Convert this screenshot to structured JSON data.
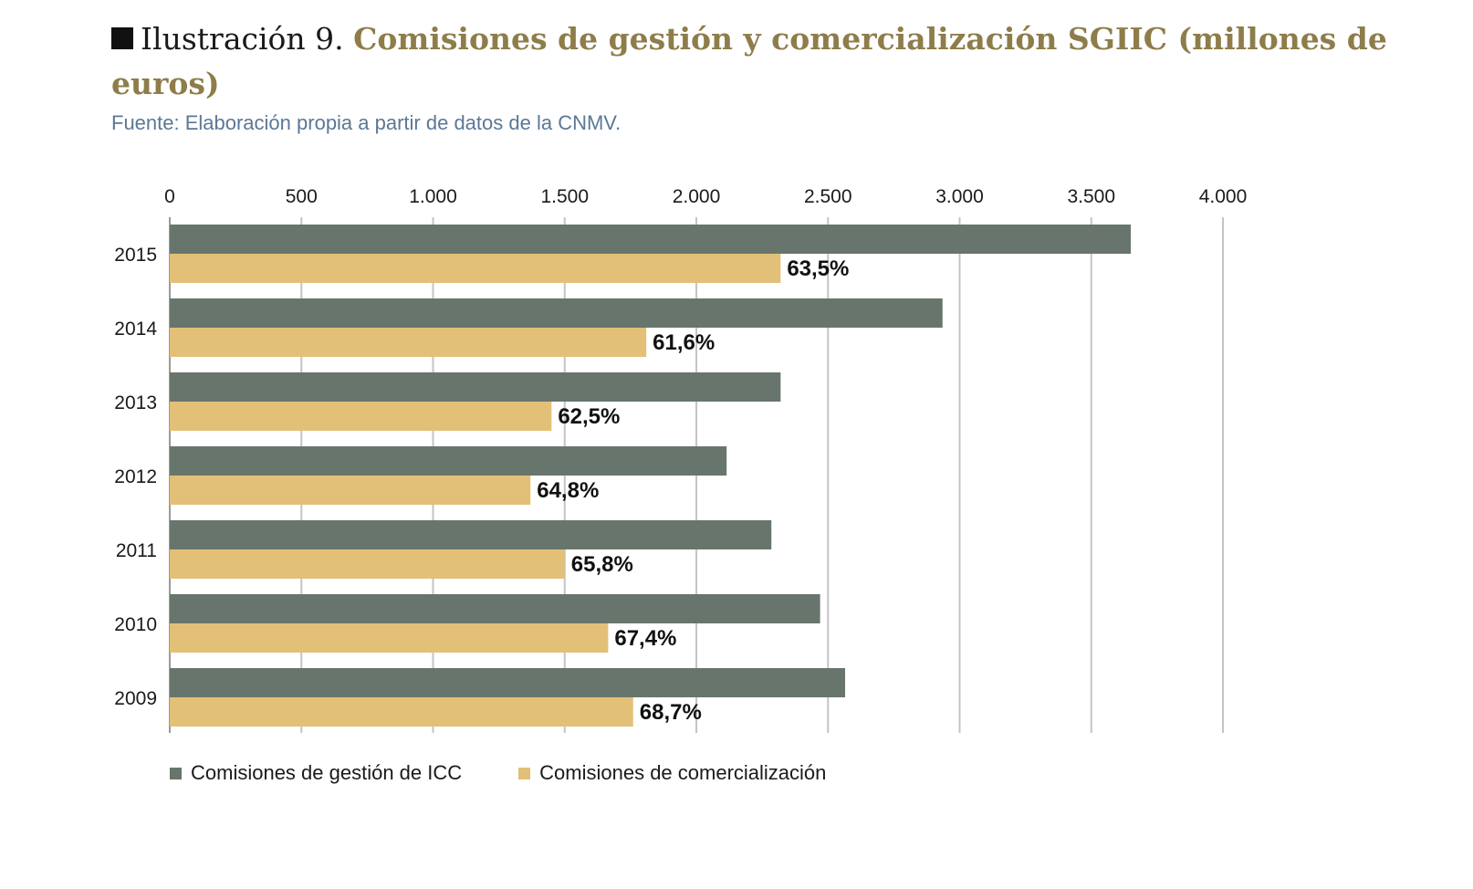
{
  "header": {
    "prefix": "Ilustración 9.",
    "title": "Comisiones de gestión y comercialización SGIIC (millones de euros)",
    "source": "Fuente: Elaboración propia a partir de datos de la CNMV."
  },
  "colors": {
    "gestion": "#68756c",
    "comercializacion": "#e2c078",
    "grid": "#c4c4c4"
  },
  "chart_data": {
    "type": "bar",
    "orientation": "horizontal",
    "categories": [
      "2015",
      "2014",
      "2013",
      "2012",
      "2011",
      "2010",
      "2009"
    ],
    "series": [
      {
        "name": "Comisiones de gestión de ICC",
        "values": [
          3650,
          2935,
          2320,
          2115,
          2285,
          2470,
          2565
        ]
      },
      {
        "name": "Comisiones de comercialización",
        "values": [
          2320,
          1810,
          1450,
          1370,
          1500,
          1665,
          1760
        ]
      }
    ],
    "data_labels": [
      "63,5%",
      "61,6%",
      "62,5%",
      "64,8%",
      "65,8%",
      "67,4%",
      "68,7%"
    ],
    "x_ticks": [
      "0",
      "500",
      "1.000",
      "1.500",
      "2.000",
      "2.500",
      "3.000",
      "3.500",
      "4.000"
    ],
    "xlim": [
      0,
      4000
    ],
    "grid": true,
    "legend_position": "bottom-left"
  }
}
